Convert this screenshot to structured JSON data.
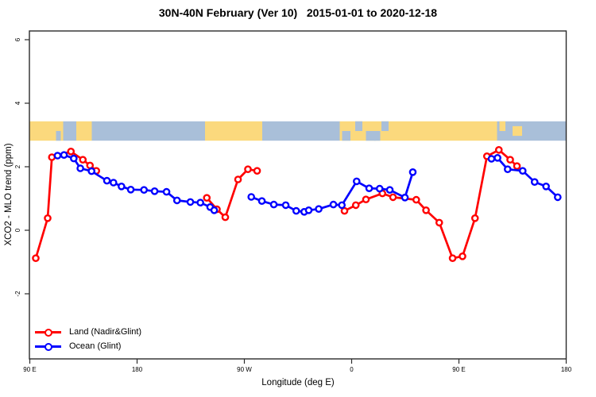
{
  "title": "30N-40N February (Ver 10)   2015-01-01 to 2020-12-18",
  "chart_data": {
    "type": "line",
    "title": "30N-40N February (Ver 10)   2015-01-01 to 2020-12-18",
    "xlabel": "Longitude (deg E)",
    "ylabel": "XCO2 - MLO trend (ppm)",
    "x_axis_note": "Longitude axis spans 450 deg starting at 90E, wrapping 90E>180>90W>0>90E>180; stored x = degrees east of Greenwich measured continuously from 90 to 540",
    "xlim": [
      90,
      540
    ],
    "ylim": [
      -4.05,
      6.28
    ],
    "grid": false,
    "x_ticks": [
      {
        "pos": 90,
        "label": "90 E"
      },
      {
        "pos": 180,
        "label": "180"
      },
      {
        "pos": 270,
        "label": "90 W"
      },
      {
        "pos": 360,
        "label": "0"
      },
      {
        "pos": 450,
        "label": "90 E"
      },
      {
        "pos": 540,
        "label": "180"
      }
    ],
    "y_ticks": [
      {
        "pos": -2,
        "label": "-2"
      },
      {
        "pos": 0,
        "label": "0"
      },
      {
        "pos": 2,
        "label": "2"
      },
      {
        "pos": 4,
        "label": "4"
      },
      {
        "pos": 6,
        "label": "6"
      }
    ],
    "map_strip": {
      "description": "world coastline band 30N-40N drawn across plot at data height 2.82 to 3.43",
      "val_top": 3.43,
      "val_bottom": 2.82,
      "land_color": "#fbd97d",
      "ocean_color": "#a9bfd9",
      "segments": [
        {
          "from": 90,
          "to": 118,
          "type": "land"
        },
        {
          "from": 118,
          "to": 129,
          "type": "ocean"
        },
        {
          "from": 129,
          "to": 142,
          "type": "land"
        },
        {
          "from": 142,
          "to": 237,
          "type": "ocean"
        },
        {
          "from": 237,
          "to": 285,
          "type": "land"
        },
        {
          "from": 285,
          "to": 350,
          "type": "ocean"
        },
        {
          "from": 350,
          "to": 396,
          "type": "land"
        },
        {
          "from": 396,
          "to": 482,
          "type": "land"
        },
        {
          "from": 482,
          "to": 507,
          "type": "ocean"
        },
        {
          "from": 507,
          "to": 540,
          "type": "ocean"
        }
      ],
      "patches": [
        {
          "from": 352,
          "to": 359,
          "half": "bottom",
          "type": "ocean"
        },
        {
          "from": 363,
          "to": 369,
          "half": "top",
          "type": "ocean"
        },
        {
          "from": 372,
          "to": 380,
          "half": "bottom",
          "type": "ocean"
        },
        {
          "from": 385,
          "to": 391,
          "half": "top",
          "type": "ocean"
        },
        {
          "from": 379,
          "to": 384,
          "half": "bottom",
          "type": "ocean"
        },
        {
          "from": 484,
          "to": 489,
          "half": "top",
          "type": "land"
        },
        {
          "from": 495,
          "to": 503,
          "half": "mid",
          "type": "land"
        },
        {
          "from": 112,
          "to": 116,
          "half": "bottom",
          "type": "ocean"
        }
      ]
    },
    "series": [
      {
        "name": "Land (Nadir&Glint)",
        "color": "#ff0000",
        "marker": "open-circle",
        "segments": [
          [
            [
              95,
              -0.88
            ],
            [
              105,
              0.38
            ],
            [
              108.5,
              2.3
            ],
            [
              124.5,
              2.48
            ],
            [
              134.5,
              2.22
            ],
            [
              140.5,
              2.04
            ],
            [
              145.8,
              1.87
            ]
          ],
          [
            [
              238.5,
              1.02
            ],
            [
              247,
              0.66
            ],
            [
              254,
              0.41
            ],
            [
              264.7,
              1.6
            ],
            [
              273,
              1.92
            ],
            [
              280.7,
              1.87
            ]
          ],
          [
            [
              354,
              0.61
            ],
            [
              363.5,
              0.79
            ],
            [
              372,
              0.97
            ],
            [
              385.8,
              1.16
            ],
            [
              394.7,
              1.04
            ],
            [
              414.2,
              0.96
            ],
            [
              422.4,
              0.63
            ],
            [
              433.5,
              0.24
            ],
            [
              444.7,
              -0.88
            ],
            [
              453,
              -0.82
            ],
            [
              463.5,
              0.38
            ],
            [
              473.5,
              2.33
            ],
            [
              483.5,
              2.53
            ],
            [
              493,
              2.22
            ],
            [
              498.7,
              2.02
            ]
          ]
        ]
      },
      {
        "name": "Ocean (Glint)",
        "color": "#0000ff",
        "marker": "open-circle",
        "segments": [
          [
            [
              113.3,
              2.35
            ],
            [
              118.7,
              2.37
            ],
            [
              126.9,
              2.26
            ],
            [
              132.4,
              1.95
            ],
            [
              141.8,
              1.86
            ],
            [
              154.7,
              1.56
            ],
            [
              160.2,
              1.5
            ],
            [
              166.9,
              1.38
            ],
            [
              174.7,
              1.28
            ],
            [
              185.8,
              1.27
            ],
            [
              194.7,
              1.23
            ],
            [
              204.7,
              1.21
            ],
            [
              213.5,
              0.94
            ],
            [
              224.7,
              0.89
            ],
            [
              233.1,
              0.87
            ],
            [
              241.3,
              0.73
            ],
            [
              244.7,
              0.63
            ]
          ],
          [
            [
              275.8,
              1.05
            ],
            [
              284.7,
              0.92
            ],
            [
              294.7,
              0.81
            ],
            [
              304.7,
              0.79
            ],
            [
              313.5,
              0.61
            ],
            [
              320.2,
              0.58
            ],
            [
              324,
              0.63
            ],
            [
              332.4,
              0.67
            ],
            [
              344.7,
              0.81
            ],
            [
              351.8,
              0.79
            ],
            [
              364.2,
              1.54
            ],
            [
              374.7,
              1.32
            ],
            [
              383.5,
              1.31
            ],
            [
              392,
              1.27
            ],
            [
              404.7,
              1.03
            ],
            [
              411.3,
              1.83
            ]
          ],
          [
            [
              477.3,
              2.25
            ],
            [
              482.4,
              2.28
            ],
            [
              490.9,
              1.92
            ],
            [
              503.5,
              1.87
            ],
            [
              513.5,
              1.52
            ],
            [
              523.1,
              1.38
            ],
            [
              532.9,
              1.04
            ]
          ]
        ]
      }
    ],
    "legend": {
      "position": "bottom-left",
      "items": [
        {
          "label": "Land (Nadir&Glint)",
          "color": "#ff0000"
        },
        {
          "label": "Ocean (Glint)",
          "color": "#0000ff"
        }
      ]
    }
  },
  "style": {
    "axis_color": "#2b2b2b",
    "text_color": "#000000",
    "background": "#ffffff"
  }
}
